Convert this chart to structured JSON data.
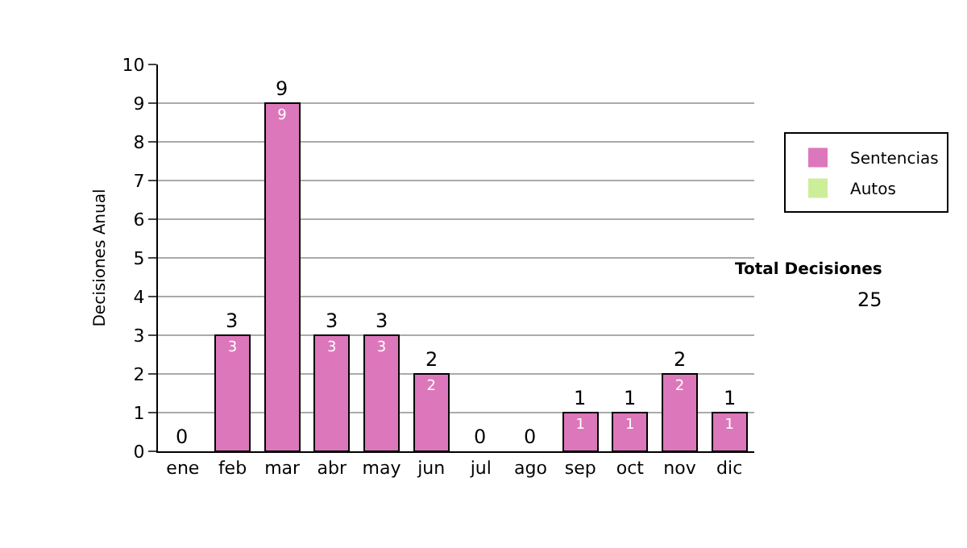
{
  "chart_data": {
    "type": "bar",
    "stacked": true,
    "ylabel": "Decisiones Anual",
    "categories": [
      "ene",
      "feb",
      "mar",
      "abr",
      "may",
      "jun",
      "jul",
      "ago",
      "sep",
      "oct",
      "nov",
      "dic"
    ],
    "series": [
      {
        "name": "Sentencias",
        "color": "#dd77bb",
        "values": [
          0,
          3,
          9,
          3,
          3,
          2,
          0,
          0,
          1,
          1,
          2,
          1
        ],
        "value_labels": [
          null,
          "3",
          "9",
          "3",
          "3",
          "2",
          null,
          null,
          "1",
          "1",
          "2",
          "1"
        ]
      },
      {
        "name": "Autos",
        "color": "#ccee99",
        "values": [
          0,
          0,
          0,
          0,
          0,
          0,
          0,
          0,
          0,
          0,
          0,
          0
        ]
      }
    ],
    "totals": [
      "0",
      "3",
      "9",
      "3",
      "3",
      "2",
      "0",
      "0",
      "1",
      "1",
      "2",
      "1"
    ],
    "ylim": [
      0,
      10
    ],
    "yticks": [
      0,
      1,
      2,
      3,
      4,
      5,
      6,
      7,
      8,
      9,
      10
    ],
    "grid": "y",
    "legend": "right",
    "annotations": [
      "Total Decisiones",
      "25"
    ]
  }
}
